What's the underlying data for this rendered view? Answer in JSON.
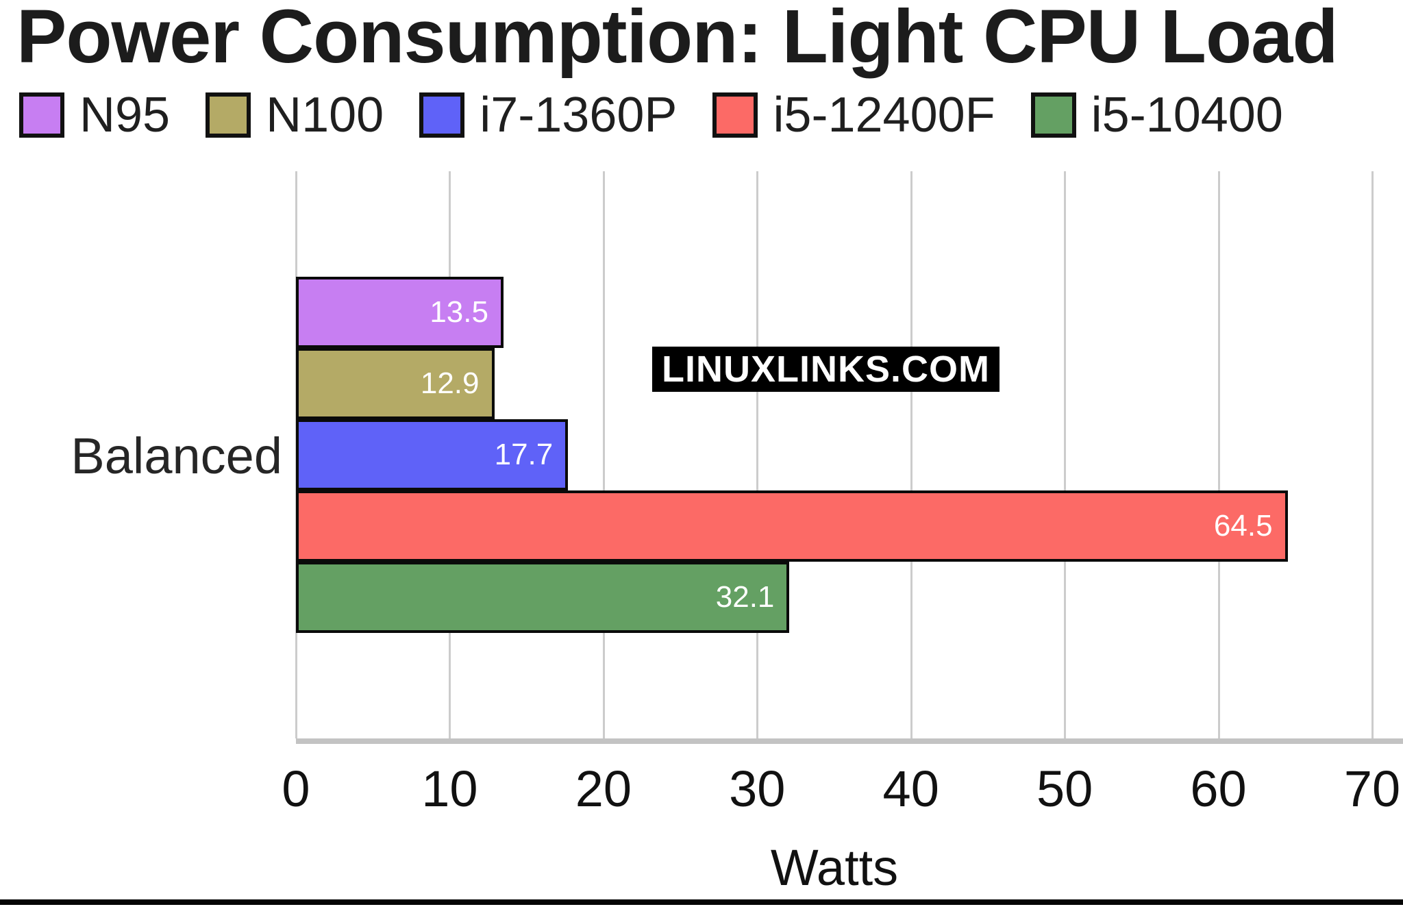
{
  "title": "Power Consumption: Light CPU Load",
  "watermark": "LINUXLINKS.COM",
  "category_label": "Balanced",
  "chart_data": {
    "type": "bar",
    "orientation": "horizontal",
    "title": "Power Consumption: Light CPU Load",
    "categories": [
      "Balanced"
    ],
    "series": [
      {
        "name": "N95",
        "color": "#c77ef2",
        "values": [
          13.5
        ]
      },
      {
        "name": "N100",
        "color": "#b4aa66",
        "values": [
          12.9
        ]
      },
      {
        "name": "i7-1360P",
        "color": "#5f62f8",
        "values": [
          17.7
        ]
      },
      {
        "name": "i5-12400F",
        "color": "#fc6a66",
        "values": [
          64.5
        ]
      },
      {
        "name": "i5-10400",
        "color": "#64a063",
        "values": [
          32.1
        ]
      }
    ],
    "xlabel": "Watts",
    "ylabel": "",
    "xlim": [
      0,
      70
    ],
    "xticks": [
      0,
      10,
      20,
      30,
      40,
      50,
      60,
      70
    ],
    "grid": true,
    "legend_position": "top",
    "value_labels": "inside-end",
    "bar_border_color": "#0a0a0a",
    "gridline_color": "#cccccc"
  }
}
